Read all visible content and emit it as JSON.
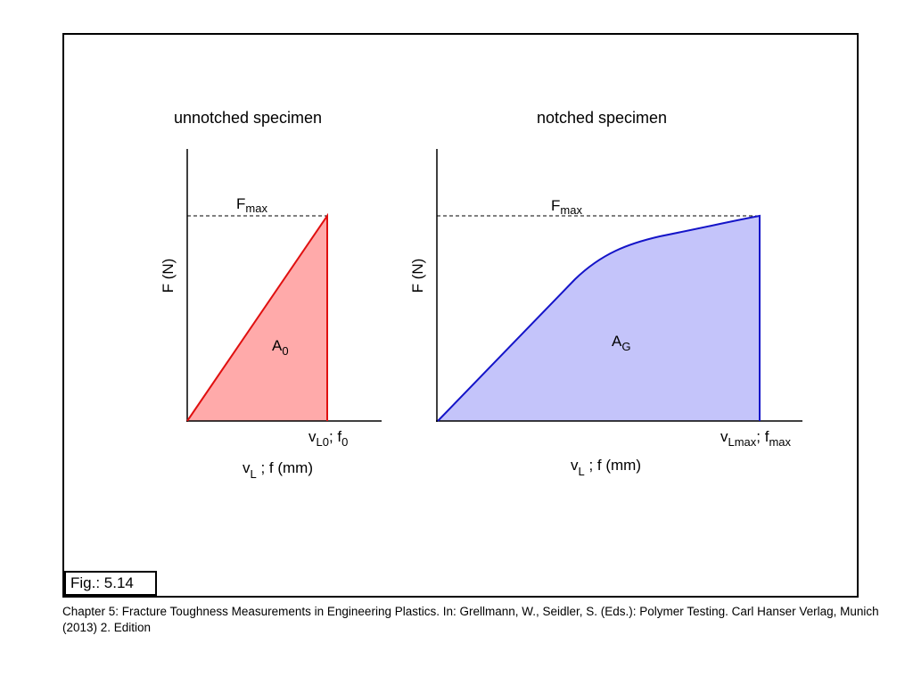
{
  "left_panel": {
    "title": "unnotched specimen",
    "y_label": "F (N)",
    "fmax_label": {
      "main": "F",
      "sub": "max"
    },
    "area_label": {
      "main": "A",
      "sub": "0"
    },
    "x_end_label": {
      "p1": "v",
      "p1_sub": "L0",
      "sep": "; f",
      "p2_sub": "0"
    },
    "x_axis_label": {
      "main": "v",
      "sub": "L",
      "rest": " ; f (mm)"
    },
    "fill_color": "#ffaaaa",
    "stroke_color": "#e01010"
  },
  "right_panel": {
    "title": "notched specimen",
    "y_label": "F (N)",
    "fmax_label": {
      "main": "F",
      "sub": "max"
    },
    "area_label": {
      "main": "A",
      "sub": "G"
    },
    "x_end_label": {
      "p1": "v",
      "p1_sub": "Lmax",
      "sep": "; f",
      "p2_sub": "max"
    },
    "x_axis_label": {
      "main": "v",
      "sub": "L",
      "rest": " ; f (mm)"
    },
    "fill_color": "#c4c4fa",
    "stroke_color": "#1414c8"
  },
  "figure_label": "Fig.: 5.14",
  "caption": "Chapter 5: Fracture Toughness Measurements in Engineering Plastics. In: Grellmann, W., Seidler, S. (Eds.): Polymer Testing. Carl Hanser Verlag, Munich (2013) 2. Edition"
}
